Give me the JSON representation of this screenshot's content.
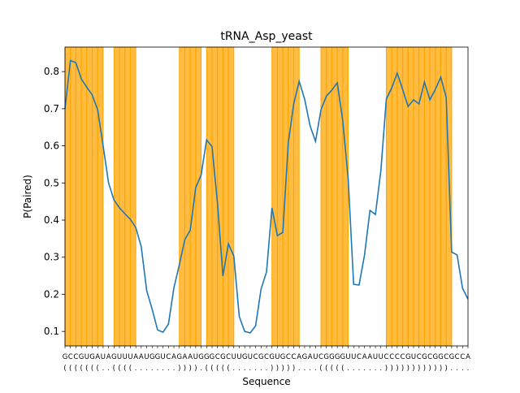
{
  "chart_data": {
    "type": "line",
    "title": "tRNA_Asp_yeast",
    "x_label": "Sequence",
    "y_label": "P(Paired)",
    "categories": [
      "G",
      "C",
      "C",
      "G",
      "U",
      "G",
      "A",
      "U",
      "A",
      "G",
      "U",
      "U",
      "U",
      "A",
      "A",
      "U",
      "G",
      "G",
      "U",
      "C",
      "A",
      "G",
      "A",
      "A",
      "U",
      "G",
      "G",
      "G",
      "C",
      "G",
      "C",
      "U",
      "U",
      "G",
      "U",
      "C",
      "G",
      "C",
      "G",
      "U",
      "G",
      "C",
      "C",
      "A",
      "G",
      "A",
      "U",
      "C",
      "G",
      "G",
      "G",
      "G",
      "U",
      "U",
      "C",
      "A",
      "A",
      "U",
      "U",
      "C",
      "C",
      "C",
      "C",
      "G",
      "U",
      "C",
      "G",
      "C",
      "G",
      "G",
      "C",
      "G",
      "C",
      "C",
      "A"
    ],
    "structure": [
      "(",
      "(",
      "(",
      "(",
      "(",
      "(",
      "(",
      ".",
      ".",
      "(",
      "(",
      "(",
      "(",
      ".",
      ".",
      ".",
      ".",
      ".",
      ".",
      ".",
      ".",
      ")",
      ")",
      ")",
      ")",
      ".",
      "(",
      "(",
      "(",
      "(",
      "(",
      ".",
      ".",
      ".",
      ".",
      ".",
      ".",
      ".",
      ")",
      ")",
      ")",
      ")",
      ")",
      ".",
      ".",
      ".",
      ".",
      "(",
      "(",
      "(",
      "(",
      "(",
      ".",
      ".",
      ".",
      ".",
      ".",
      ".",
      ".",
      ")",
      ")",
      ")",
      ")",
      ")",
      ")",
      ")",
      ")",
      ")",
      ")",
      ")",
      ")",
      ".",
      ".",
      ".",
      "."
    ],
    "series": [
      {
        "name": "P(Paired)",
        "color": "#1f77b4",
        "values": [
          0.7,
          0.83,
          0.824,
          0.78,
          0.758,
          0.737,
          0.697,
          0.6,
          0.5,
          0.454,
          0.433,
          0.417,
          0.402,
          0.38,
          0.328,
          0.21,
          0.16,
          0.104,
          0.098,
          0.12,
          0.218,
          0.28,
          0.347,
          0.373,
          0.487,
          0.522,
          0.616,
          0.598,
          0.445,
          0.249,
          0.336,
          0.303,
          0.14,
          0.1,
          0.096,
          0.115,
          0.214,
          0.26,
          0.433,
          0.358,
          0.367,
          0.608,
          0.713,
          0.774,
          0.726,
          0.654,
          0.612,
          0.697,
          0.734,
          0.75,
          0.77,
          0.668,
          0.511,
          0.227,
          0.225,
          0.306,
          0.426,
          0.415,
          0.533,
          0.726,
          0.756,
          0.796,
          0.752,
          0.706,
          0.724,
          0.713,
          0.772,
          0.724,
          0.752,
          0.785,
          0.73,
          0.314,
          0.306,
          0.216,
          0.187
        ]
      }
    ],
    "paired_color": "#ffa500",
    "xlim": [
      0,
      74
    ],
    "ylim": [
      0.061,
      0.866
    ],
    "yticks": [
      0.1,
      0.2,
      0.3,
      0.4,
      0.5,
      0.6,
      0.7,
      0.8
    ]
  }
}
